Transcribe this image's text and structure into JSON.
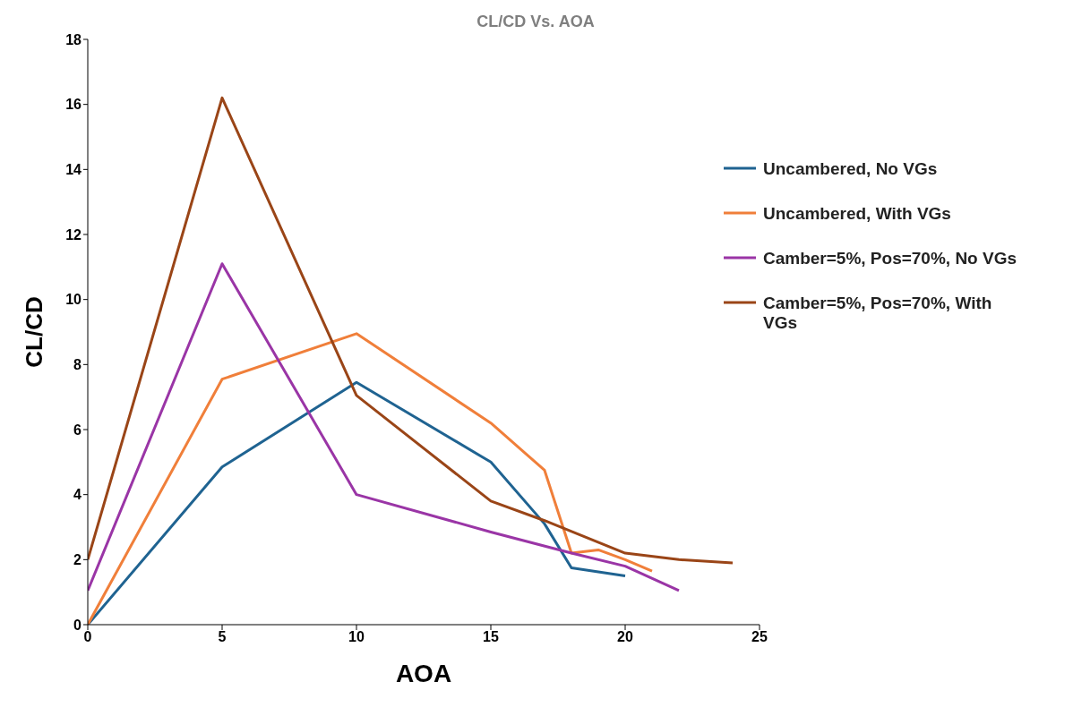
{
  "chart_data": {
    "type": "line",
    "title": "CL/CD Vs. AOA",
    "xlabel": "AOA",
    "ylabel": "CL/CD",
    "xlim": [
      0,
      25
    ],
    "xticks": [
      0,
      5,
      10,
      15,
      20,
      25
    ],
    "ylim": [
      0,
      18
    ],
    "yticks": [
      0,
      2,
      4,
      6,
      8,
      10,
      12,
      14,
      16,
      18
    ],
    "grid": false,
    "legend": "right",
    "marker": "none",
    "line_style": "solid",
    "series": [
      {
        "name": "Uncambered, No VGs",
        "color": "#1f6391",
        "x": [
          0,
          5,
          10,
          15,
          17,
          18,
          20
        ],
        "values": [
          0,
          4.85,
          7.45,
          5.0,
          3.1,
          1.75,
          1.5
        ]
      },
      {
        "name": "Uncambered, With VGs",
        "color": "#f07f3a",
        "x": [
          0,
          5,
          10,
          15,
          17,
          18,
          19,
          20,
          21
        ],
        "values": [
          0,
          7.55,
          8.95,
          6.2,
          4.75,
          2.2,
          2.3,
          2.0,
          1.65
        ]
      },
      {
        "name": "Camber=5%, Pos=70%, No VGs",
        "color": "#9a35a6",
        "x": [
          0,
          5,
          10,
          15,
          18,
          20,
          22
        ],
        "values": [
          1.05,
          11.1,
          4.0,
          2.85,
          2.2,
          1.8,
          1.05
        ]
      },
      {
        "name": "Camber=5%, Pos=70%, With VGs",
        "color": "#9a4517",
        "x": [
          0,
          5,
          10,
          15,
          17,
          20,
          22,
          24
        ],
        "values": [
          2.0,
          16.2,
          7.05,
          3.8,
          3.2,
          2.2,
          2.0,
          1.9
        ]
      }
    ]
  }
}
